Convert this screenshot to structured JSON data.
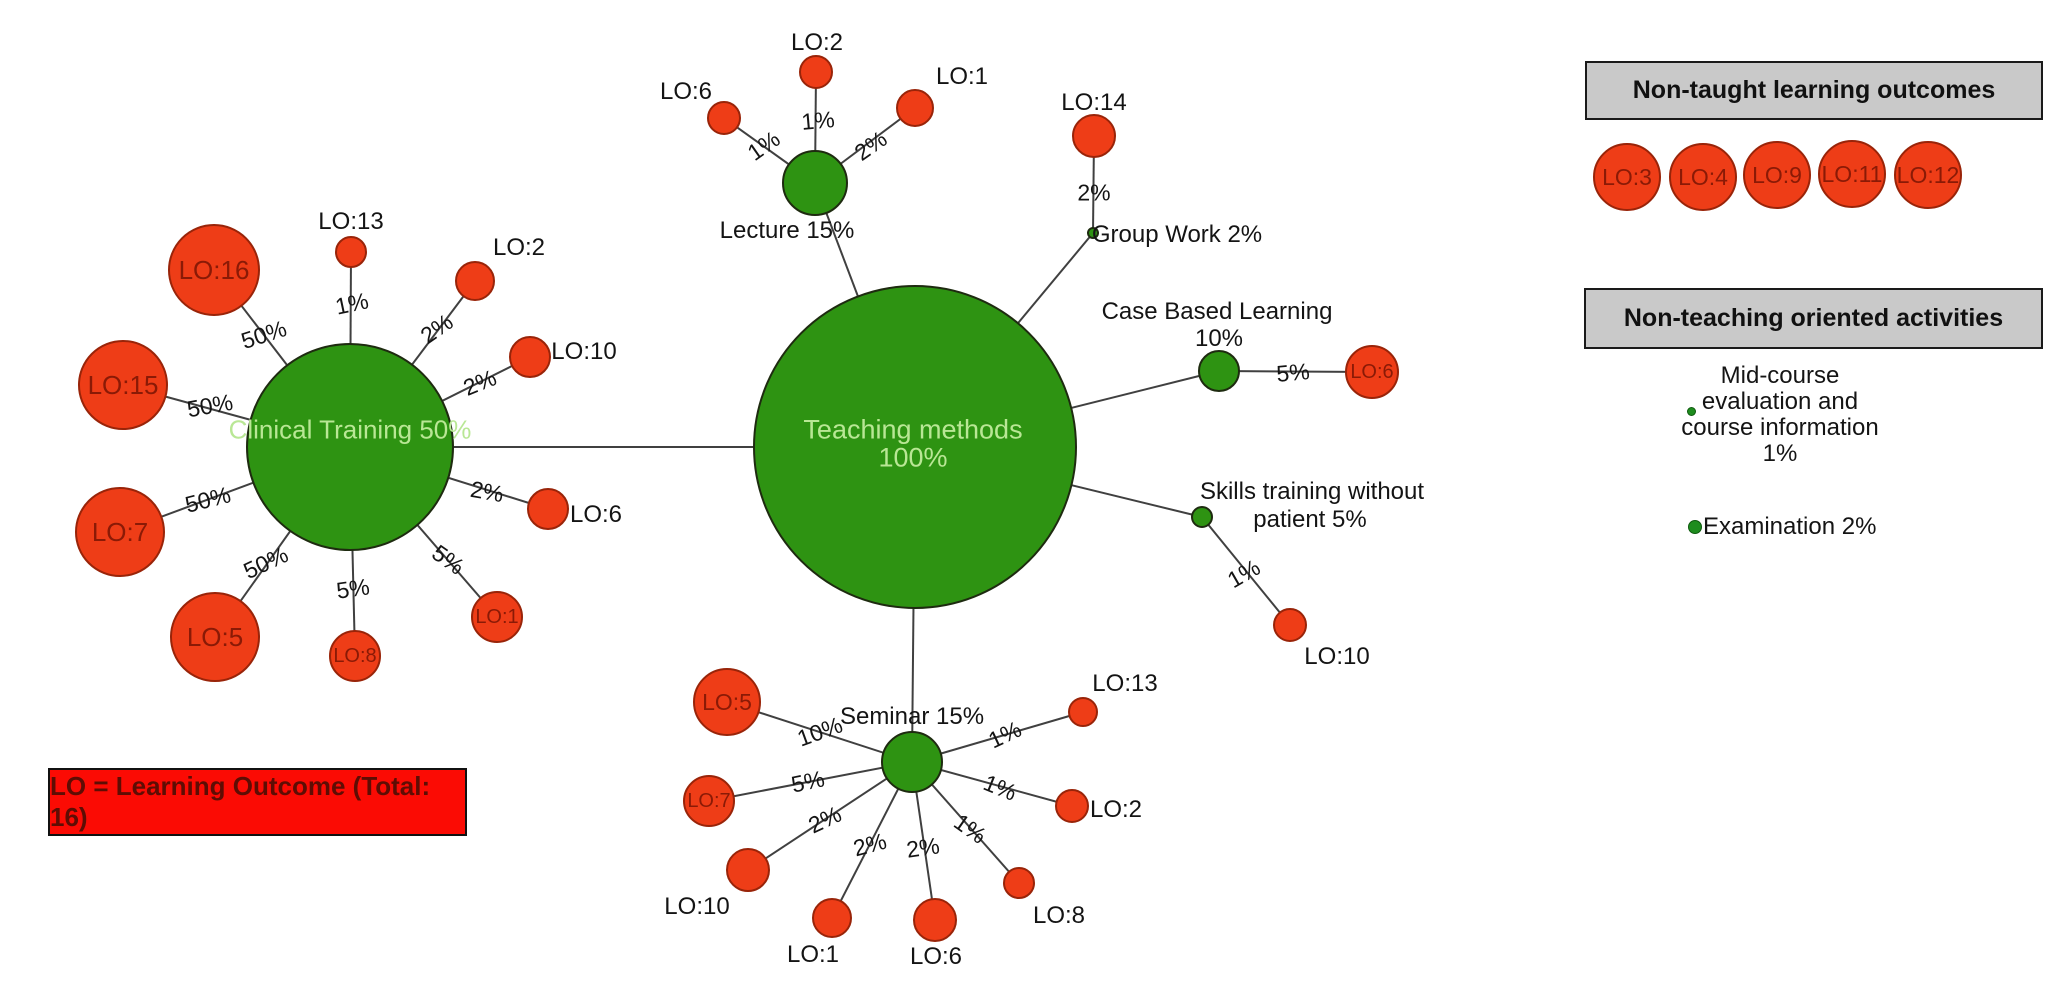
{
  "colors": {
    "node_red": "#ee3d17",
    "node_red_border": "#992409",
    "node_red_text": "#8a1a06",
    "hub_green": "#2e9312",
    "hub_green_border": "#1e2b10",
    "hub_text": "#b9e795",
    "edge": "#404040",
    "label_text": "#141414",
    "header_bg": "#c9c9c9",
    "legend_bg": "#fb0b04",
    "legend_text": "#5e0d04",
    "small_dot_green": "#1e8c1e"
  },
  "center_hub": {
    "id": "teaching",
    "lines": [
      "Teaching methods",
      "100%"
    ]
  },
  "clusters": [
    {
      "id": "clinical",
      "label": "Clinical Training 50%",
      "satellites": [
        {
          "id": "clinical-lo16",
          "label": "LO:16",
          "pct": "50%"
        },
        {
          "id": "clinical-lo13",
          "label": "LO:13",
          "pct": "1%"
        },
        {
          "id": "clinical-lo2",
          "label": "LO:2",
          "pct": "2%"
        },
        {
          "id": "clinical-lo15",
          "label": "LO:15",
          "pct": "50%"
        },
        {
          "id": "clinical-lo10",
          "label": "LO:10",
          "pct": "2%"
        },
        {
          "id": "clinical-lo7",
          "label": "LO:7",
          "pct": "50%"
        },
        {
          "id": "clinical-lo6",
          "label": "LO:6",
          "pct": "2%"
        },
        {
          "id": "clinical-lo5",
          "label": "LO:5",
          "pct": "50%"
        },
        {
          "id": "clinical-lo8",
          "label": "LO:8",
          "pct": "5%"
        },
        {
          "id": "clinical-lo1",
          "label": "LO:1",
          "pct": "5%"
        }
      ]
    },
    {
      "id": "lecture",
      "label": "Lecture 15%",
      "satellites": [
        {
          "id": "lecture-lo6",
          "label": "LO:6",
          "pct": "1%"
        },
        {
          "id": "lecture-lo2",
          "label": "LO:2",
          "pct": "1%"
        },
        {
          "id": "lecture-lo1",
          "label": "LO:1",
          "pct": "2%"
        }
      ]
    },
    {
      "id": "groupwork",
      "label": "Group Work 2%",
      "satellites": [
        {
          "id": "group-lo14",
          "label": "LO:14",
          "pct": "2%"
        }
      ]
    },
    {
      "id": "cbl",
      "label": "Case Based Learning",
      "label2": "10%",
      "satellites": [
        {
          "id": "cbl-lo6",
          "label": "LO:6",
          "pct": "5%"
        }
      ]
    },
    {
      "id": "skills",
      "label": "Skills training without",
      "label2": "patient 5%",
      "satellites": [
        {
          "id": "skills-lo10",
          "label": "LO:10",
          "pct": "1%"
        }
      ]
    },
    {
      "id": "seminar",
      "label": "Seminar 15%",
      "satellites": [
        {
          "id": "seminar-lo5",
          "label": "LO:5",
          "pct": "10%"
        },
        {
          "id": "seminar-lo7",
          "label": "LO:7",
          "pct": "5%"
        },
        {
          "id": "seminar-lo10",
          "label": "LO:10",
          "pct": "2%"
        },
        {
          "id": "seminar-lo1",
          "label": "LO:1",
          "pct": "2%"
        },
        {
          "id": "seminar-lo6",
          "label": "LO:6",
          "pct": "2%"
        },
        {
          "id": "seminar-lo8",
          "label": "LO:8",
          "pct": "1%"
        },
        {
          "id": "seminar-lo2",
          "label": "LO:2",
          "pct": "1%"
        },
        {
          "id": "seminar-lo13",
          "label": "LO:13",
          "pct": "1%"
        }
      ]
    }
  ],
  "panels": {
    "non_taught": {
      "title": "Non-taught learning outcomes",
      "items": [
        "LO:3",
        "LO:4",
        "LO:9",
        "LO:11",
        "LO:12"
      ]
    },
    "non_teaching": {
      "title": "Non-teaching oriented activities",
      "mid_course_lines": [
        "Mid-course",
        "evaluation and",
        "course information",
        "1%"
      ],
      "examination": "Examination 2%"
    }
  },
  "legend": {
    "text": "LO = Learning Outcome (Total: 16)"
  }
}
